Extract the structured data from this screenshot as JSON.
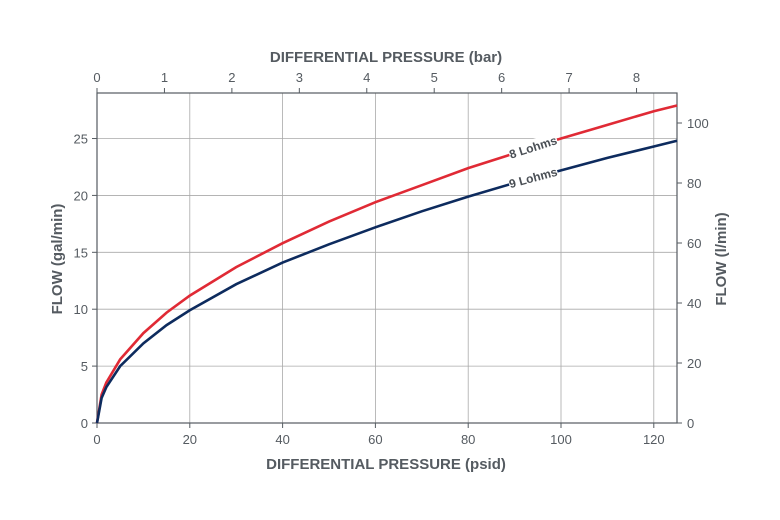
{
  "chart_data": {
    "type": "line",
    "title": "",
    "xlabel": "DIFFERENTIAL PRESSURE (psid)",
    "x2label": "DIFFERENTIAL PRESSURE (bar)",
    "ylabel": "FLOW (gal/min)",
    "y2label": "FLOW (l/min)",
    "xlim": [
      0,
      125
    ],
    "ylim": [
      0,
      29
    ],
    "x2lim": [
      0,
      8.6
    ],
    "y2lim": [
      0,
      110
    ],
    "xticks": [
      0,
      20,
      40,
      60,
      80,
      100,
      120
    ],
    "yticks": [
      0,
      5,
      10,
      15,
      20,
      25
    ],
    "x2ticks": [
      0,
      1,
      2,
      3,
      4,
      5,
      6,
      7,
      8
    ],
    "y2ticks": [
      0,
      20,
      40,
      60,
      80,
      100
    ],
    "grid": true,
    "series": [
      {
        "name": "8 Lohms",
        "color": "#e02a35",
        "x": [
          0,
          1,
          2,
          5,
          10,
          15,
          20,
          30,
          40,
          50,
          60,
          70,
          80,
          90,
          100,
          110,
          120,
          125
        ],
        "y": [
          0,
          2.5,
          3.55,
          5.6,
          7.9,
          9.7,
          11.2,
          13.7,
          15.8,
          17.7,
          19.4,
          20.9,
          22.4,
          23.7,
          25.0,
          26.2,
          27.4,
          27.9
        ]
      },
      {
        "name": "9 Lohms",
        "color": "#0d2b5e",
        "x": [
          0,
          1,
          2,
          5,
          10,
          15,
          20,
          30,
          40,
          50,
          60,
          70,
          80,
          90,
          100,
          110,
          120,
          125
        ],
        "y": [
          0,
          2.2,
          3.15,
          5.0,
          7.0,
          8.6,
          9.9,
          12.2,
          14.1,
          15.7,
          17.2,
          18.6,
          19.9,
          21.1,
          22.2,
          23.3,
          24.3,
          24.8
        ]
      }
    ]
  }
}
